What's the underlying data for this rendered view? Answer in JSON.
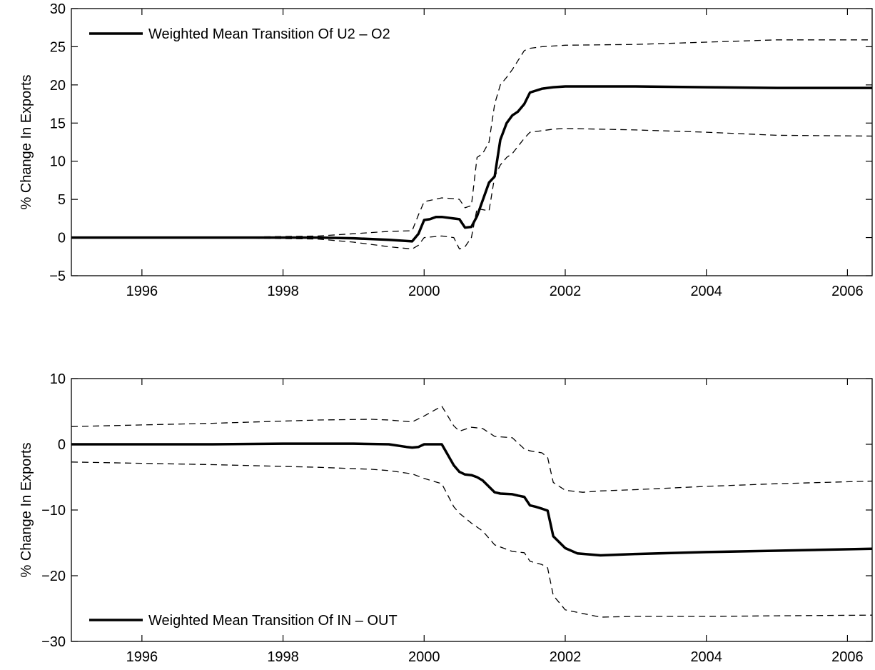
{
  "chart_data": [
    {
      "type": "line",
      "title": "",
      "xlabel": "",
      "ylabel": "% Change In Exports",
      "xlim": [
        1995.0,
        2006.35
      ],
      "ylim": [
        -5,
        30
      ],
      "xticks": [
        1996,
        1998,
        2000,
        2002,
        2004,
        2006
      ],
      "xtick_labels": [
        "1996",
        "1998",
        "2000",
        "2002",
        "2004",
        "2006"
      ],
      "yticks": [
        -5,
        0,
        5,
        10,
        15,
        20,
        25,
        30
      ],
      "ytick_labels": [
        "−5",
        "0",
        "5",
        "10",
        "15",
        "20",
        "25",
        "30"
      ],
      "grid": false,
      "legend_position": "top-left",
      "series": [
        {
          "name": "Weighted Mean Transition Of U2 – O2",
          "role": "mean",
          "style": "solid",
          "color": "#000000",
          "x": [
            1995.0,
            1997.0,
            1998.5,
            1999.0,
            1999.5,
            1999.83,
            1999.92,
            2000.0,
            2000.08,
            2000.17,
            2000.25,
            2000.42,
            2000.5,
            2000.58,
            2000.67,
            2000.75,
            2000.92,
            2001.0,
            2001.08,
            2001.17,
            2001.25,
            2001.33,
            2001.42,
            2001.5,
            2001.67,
            2001.75,
            2001.83,
            2002.0,
            2002.5,
            2003.0,
            2004.0,
            2005.0,
            2006.35
          ],
          "y": [
            0,
            0,
            0,
            -0.1,
            -0.3,
            -0.5,
            0.5,
            2.3,
            2.4,
            2.7,
            2.7,
            2.5,
            2.4,
            1.3,
            1.4,
            2.8,
            7.2,
            8.0,
            12.8,
            15.0,
            16.0,
            16.5,
            17.5,
            19.0,
            19.5,
            19.6,
            19.7,
            19.8,
            19.8,
            19.8,
            19.7,
            19.6,
            19.6
          ]
        },
        {
          "name": "",
          "role": "upper-band",
          "style": "dashed",
          "color": "#000000",
          "x": [
            1995.0,
            1997.0,
            1998.5,
            1999.0,
            1999.5,
            1999.83,
            1999.92,
            2000.0,
            2000.25,
            2000.42,
            2000.5,
            2000.58,
            2000.67,
            2000.75,
            2000.83,
            2000.92,
            2001.0,
            2001.08,
            2001.17,
            2001.25,
            2001.42,
            2001.5,
            2001.67,
            2001.83,
            2002.0,
            2003.0,
            2004.0,
            2005.0,
            2006.35
          ],
          "y": [
            0,
            0,
            0.2,
            0.5,
            0.8,
            0.9,
            3.0,
            4.7,
            5.2,
            5.1,
            5.0,
            3.9,
            4.2,
            10.5,
            11.0,
            12.5,
            17.5,
            20.0,
            21.0,
            22.0,
            24.5,
            24.8,
            25.0,
            25.1,
            25.2,
            25.3,
            25.6,
            25.9,
            25.9
          ]
        },
        {
          "name": "",
          "role": "lower-band",
          "style": "dashed",
          "color": "#000000",
          "x": [
            1995.0,
            1997.0,
            1998.5,
            1999.0,
            1999.5,
            1999.83,
            1999.92,
            2000.0,
            2000.25,
            2000.42,
            2000.5,
            2000.58,
            2000.67,
            2000.75,
            2000.92,
            2001.0,
            2001.08,
            2001.17,
            2001.25,
            2001.42,
            2001.5,
            2001.67,
            2001.83,
            2002.0,
            2003.0,
            2004.0,
            2005.0,
            2006.35
          ],
          "y": [
            0,
            0,
            -0.2,
            -0.6,
            -1.2,
            -1.5,
            -1.0,
            0.0,
            0.2,
            0.0,
            -1.5,
            -1.2,
            0.0,
            3.8,
            3.5,
            8.0,
            9.5,
            10.5,
            11.0,
            13.0,
            13.8,
            14.0,
            14.2,
            14.3,
            14.1,
            13.8,
            13.4,
            13.3
          ]
        }
      ]
    },
    {
      "type": "line",
      "title": "",
      "xlabel": "",
      "ylabel": "% Change In Exports",
      "xlim": [
        1995.0,
        2006.35
      ],
      "ylim": [
        -30,
        10
      ],
      "xticks": [
        1996,
        1998,
        2000,
        2002,
        2004,
        2006
      ],
      "xtick_labels": [
        "1996",
        "1998",
        "2000",
        "2002",
        "2004",
        "2006"
      ],
      "yticks": [
        -30,
        -20,
        -10,
        0,
        10
      ],
      "ytick_labels": [
        "−30",
        "−20",
        "−10",
        "0",
        "10"
      ],
      "grid": false,
      "legend_position": "bottom-left",
      "series": [
        {
          "name": "Weighted Mean Transition Of IN – OUT",
          "role": "mean",
          "style": "solid",
          "color": "#000000",
          "x": [
            1995.0,
            1997.0,
            1998.0,
            1999.0,
            1999.5,
            1999.75,
            1999.83,
            1999.92,
            2000.0,
            2000.25,
            2000.33,
            2000.42,
            2000.5,
            2000.58,
            2000.67,
            2000.75,
            2000.83,
            2001.0,
            2001.08,
            2001.25,
            2001.33,
            2001.42,
            2001.5,
            2001.58,
            2001.67,
            2001.75,
            2001.83,
            2002.0,
            2002.17,
            2002.5,
            2003.0,
            2004.0,
            2005.0,
            2006.35
          ],
          "y": [
            0,
            0,
            0.1,
            0.1,
            0.0,
            -0.4,
            -0.5,
            -0.4,
            0.0,
            0.0,
            -1.5,
            -3.2,
            -4.2,
            -4.6,
            -4.7,
            -5.0,
            -5.5,
            -7.3,
            -7.5,
            -7.6,
            -7.8,
            -8.0,
            -9.3,
            -9.5,
            -9.8,
            -10.1,
            -14.0,
            -15.8,
            -16.6,
            -16.9,
            -16.7,
            -16.4,
            -16.2,
            -15.9
          ]
        },
        {
          "name": "",
          "role": "upper-band",
          "style": "dashed",
          "color": "#000000",
          "x": [
            1995.0,
            1997.0,
            1998.5,
            1999.25,
            1999.5,
            1999.83,
            2000.0,
            2000.25,
            2000.42,
            2000.5,
            2000.67,
            2000.83,
            2001.0,
            2001.25,
            2001.42,
            2001.5,
            2001.67,
            2001.75,
            2001.83,
            2002.0,
            2002.25,
            2002.5,
            2003.0,
            2004.0,
            2005.0,
            2006.35
          ],
          "y": [
            2.7,
            3.2,
            3.7,
            3.8,
            3.7,
            3.4,
            4.3,
            5.8,
            2.8,
            2.0,
            2.6,
            2.4,
            1.2,
            1.0,
            -0.7,
            -1.0,
            -1.3,
            -2.0,
            -5.8,
            -7.0,
            -7.3,
            -7.1,
            -6.9,
            -6.4,
            -6.0,
            -5.6
          ]
        },
        {
          "name": "",
          "role": "lower-band",
          "style": "dashed",
          "color": "#000000",
          "x": [
            1995.0,
            1997.0,
            1998.5,
            1999.25,
            1999.5,
            1999.83,
            2000.0,
            2000.25,
            2000.42,
            2000.5,
            2000.67,
            2000.83,
            2001.0,
            2001.25,
            2001.42,
            2001.5,
            2001.67,
            2001.75,
            2001.83,
            2002.0,
            2002.5,
            2003.0,
            2004.0,
            2005.0,
            2006.35
          ],
          "y": [
            -2.7,
            -3.1,
            -3.5,
            -3.8,
            -4.0,
            -4.5,
            -5.2,
            -6.0,
            -9.5,
            -10.5,
            -12.0,
            -13.2,
            -15.3,
            -16.3,
            -16.5,
            -17.8,
            -18.3,
            -18.8,
            -23.0,
            -25.2,
            -26.3,
            -26.2,
            -26.2,
            -26.1,
            -26.0
          ]
        }
      ]
    }
  ]
}
